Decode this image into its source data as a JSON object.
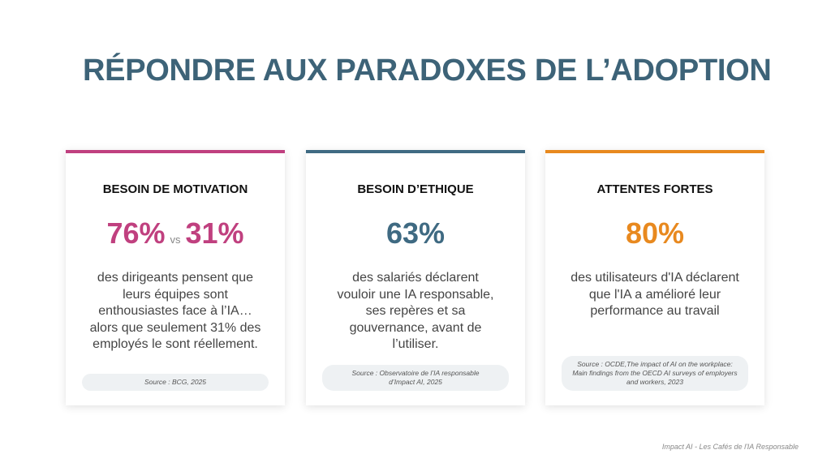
{
  "title": "RÉPONDRE AUX PARADOXES DE L’ADOPTION",
  "cards": [
    {
      "heading": "BESOIN DE MOTIVATION",
      "color": "#c0407f",
      "stat": [
        "76%",
        "vs",
        "31%"
      ],
      "description": [
        "des dirigeants pensent que",
        "leurs équipes sont",
        "enthousiastes face à l’IA…",
        "alors que seulement 31% des",
        "employés le sont réellement."
      ],
      "source": [
        "Source : BCG, 2025"
      ]
    },
    {
      "heading": "BESOIN D’ETHIQUE",
      "color": "#3f6a82",
      "stat": [
        "63%"
      ],
      "description": [
        "des salariés déclarent",
        "vouloir une IA responsable,",
        "ses repères et sa",
        "gouvernance, avant de",
        "l’utiliser."
      ],
      "source": [
        "Source : Observatoire de l’IA responsable",
        "d’Impact AI, 2025"
      ]
    },
    {
      "heading": "ATTENTES FORTES",
      "color": "#e8891f",
      "stat": [
        "80%"
      ],
      "description": [
        "des utilisateurs d'IA déclarent",
        "que l'IA a amélioré leur",
        "performance au travail"
      ],
      "source": [
        "Source : OCDE,The impact of AI on the workplace:",
        "Main findings from the OECD AI surveys of employers",
        "and workers, 2023"
      ]
    }
  ],
  "footer": "Impact AI - Les Cafés de l'IA Responsable"
}
